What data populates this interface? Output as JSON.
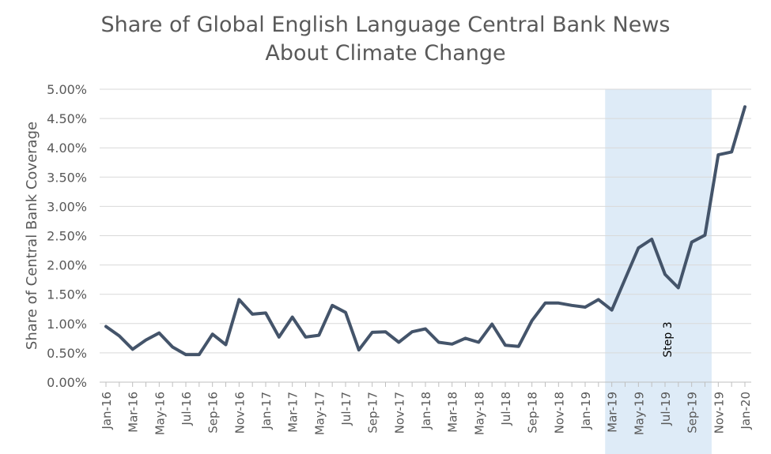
{
  "chart_data": {
    "type": "line",
    "title_lines": [
      "Share of Global English Language Central Bank News",
      "About Climate Change"
    ],
    "ylabel": "Share of Central Bank Coverage",
    "xlabel": "",
    "ylim": [
      0,
      5
    ],
    "y_ticks": [
      "0.00%",
      "0.50%",
      "1.00%",
      "1.50%",
      "2.00%",
      "2.50%",
      "3.00%",
      "3.50%",
      "4.00%",
      "4.50%",
      "5.00%"
    ],
    "x_tick_labels": [
      "Jan-16",
      "Mar-16",
      "May-16",
      "Jul-16",
      "Sep-16",
      "Nov-16",
      "Jan-17",
      "Mar-17",
      "May-17",
      "Jul-17",
      "Sep-17",
      "Nov-17",
      "Jan-18",
      "Mar-18",
      "May-18",
      "Jul-18",
      "Sep-18",
      "Nov-18",
      "Jan-19",
      "Mar-19",
      "May-19",
      "Jul-19",
      "Sep-19",
      "Nov-19",
      "Jan-20"
    ],
    "x": [
      "Jan-16",
      "Feb-16",
      "Mar-16",
      "Apr-16",
      "May-16",
      "Jun-16",
      "Jul-16",
      "Aug-16",
      "Sep-16",
      "Oct-16",
      "Nov-16",
      "Dec-16",
      "Jan-17",
      "Feb-17",
      "Mar-17",
      "Apr-17",
      "May-17",
      "Jun-17",
      "Jul-17",
      "Aug-17",
      "Sep-17",
      "Oct-17",
      "Nov-17",
      "Dec-17",
      "Jan-18",
      "Feb-18",
      "Mar-18",
      "Apr-18",
      "May-18",
      "Jun-18",
      "Jul-18",
      "Aug-18",
      "Sep-18",
      "Oct-18",
      "Nov-18",
      "Dec-18",
      "Jan-19",
      "Feb-19",
      "Mar-19",
      "Apr-19",
      "May-19",
      "Jun-19",
      "Jul-19",
      "Aug-19",
      "Sep-19",
      "Oct-19",
      "Nov-19",
      "Dec-19",
      "Jan-20"
    ],
    "series": [
      {
        "values": [
          0.95,
          0.79,
          0.56,
          0.72,
          0.84,
          0.6,
          0.47,
          0.47,
          0.82,
          0.64,
          1.41,
          1.16,
          1.18,
          0.77,
          1.11,
          0.77,
          0.8,
          1.31,
          1.19,
          0.55,
          0.85,
          0.86,
          0.68,
          0.86,
          0.91,
          0.68,
          0.65,
          0.75,
          0.68,
          0.99,
          0.63,
          0.61,
          1.05,
          1.35,
          1.35,
          1.31,
          1.28,
          1.41,
          1.23,
          1.76,
          2.29,
          2.44,
          1.84,
          1.61,
          2.39,
          2.51,
          3.88,
          3.93,
          4.7
        ],
        "color": "#44546a"
      }
    ],
    "shaded_region": {
      "start": "Mar-19",
      "end": "Oct-19",
      "label": "Step 3",
      "color": "#deebf7"
    },
    "grid": true,
    "legend": "none"
  }
}
